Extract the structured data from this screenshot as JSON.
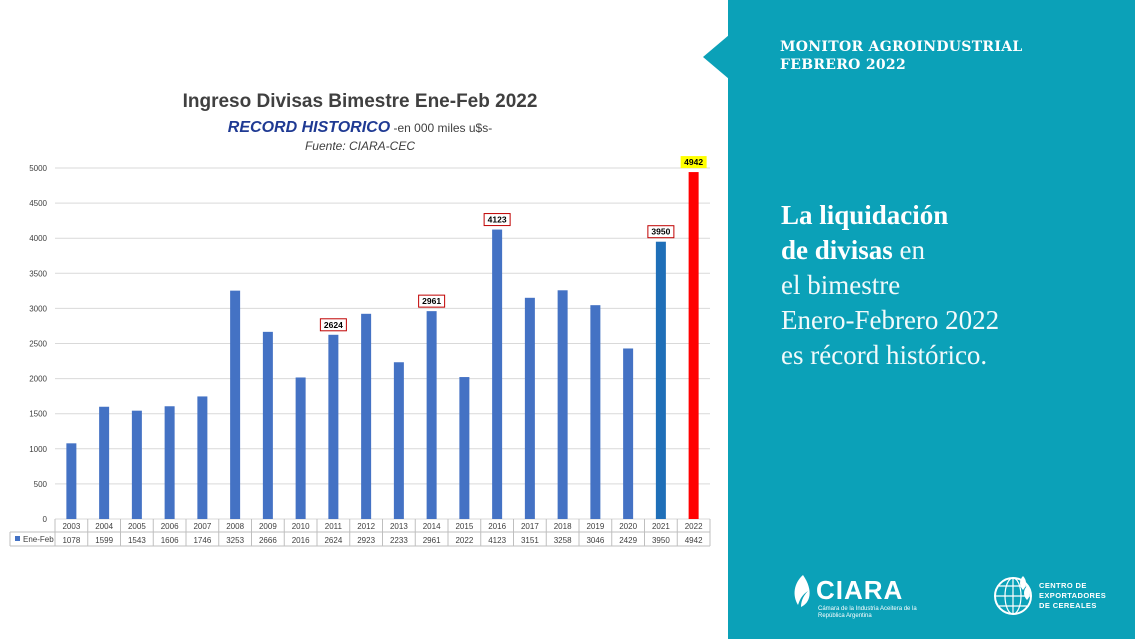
{
  "chart_data": {
    "type": "bar",
    "title": "Ingreso Divisas Bimestre Ene-Feb 2022",
    "subtitle_main": "RECORD HISTORICO",
    "subtitle_rest": " -en 000  miles u$s-",
    "source": "Fuente: CIARA-CEC",
    "categories": [
      "2003",
      "2004",
      "2005",
      "2006",
      "2007",
      "2008",
      "2009",
      "2010",
      "2011",
      "2012",
      "2013",
      "2014",
      "2015",
      "2016",
      "2017",
      "2018",
      "2019",
      "2020",
      "2021",
      "2022"
    ],
    "series": [
      {
        "name": "Ene-Feb",
        "values": [
          1078,
          1599,
          1543,
          1606,
          1746,
          3253,
          2666,
          2016,
          2624,
          2923,
          2233,
          2961,
          2022,
          4123,
          3151,
          3258,
          3046,
          2429,
          3950,
          4942
        ]
      }
    ],
    "ylim": [
      0,
      5000
    ],
    "yticks": [
      0,
      500,
      1000,
      1500,
      2000,
      2500,
      3000,
      3500,
      4000,
      4500,
      5000
    ],
    "grid": true,
    "data_table": true,
    "callouts": [
      "2011",
      "2014",
      "2016",
      "2021",
      "2022"
    ],
    "colors": {
      "bar": "#4472c4",
      "bar_2021": "#1f6fb8",
      "bar_2022": "#ff0000",
      "callout_border": "#c00000",
      "callout_2022_fill": "#ffff00",
      "title_blue": "#1f3a93"
    }
  },
  "panel": {
    "monitor_line1": "MONITOR AGROINDUSTRIAL",
    "monitor_line2": "FEBRERO 2022",
    "headline": [
      {
        "text": "La liquidación",
        "bold": true
      },
      {
        "text": "de divisas",
        "bold": true,
        "suffix": " en"
      },
      {
        "text": "el bimestre",
        "bold": false
      },
      {
        "text": "Enero-Febrero 2022",
        "bold": false
      },
      {
        "text": "es récord histórico.",
        "bold": false
      }
    ],
    "color": "#0ba1b8"
  },
  "logos": {
    "ciara_word": "CIARA",
    "ciara_sub": "Cámara de la Industria Aceitera de la República Argentina",
    "cec_line1": "CENTRO DE",
    "cec_line2": "EXPORTADORES",
    "cec_line3": "DE CEREALES"
  }
}
